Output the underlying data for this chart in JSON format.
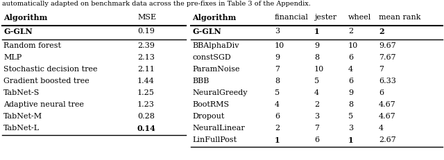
{
  "left_table": {
    "headers": [
      "Algorithm",
      "MSE"
    ],
    "gln_row": [
      "G-GLN",
      "0.19"
    ],
    "gln_bold": [
      true,
      false
    ],
    "rows": [
      [
        "Random forest",
        "2.39"
      ],
      [
        "MLP",
        "2.13"
      ],
      [
        "Stochastic decision tree",
        "2.11"
      ],
      [
        "Gradient boosted tree",
        "1.44"
      ],
      [
        "TabNet-S",
        "1.25"
      ],
      [
        "Adaptive neural tree",
        "1.23"
      ],
      [
        "TabNet-M",
        "0.28"
      ],
      [
        "TabNet-L",
        "0.14"
      ]
    ],
    "row_bold": [
      [
        false,
        false
      ],
      [
        false,
        false
      ],
      [
        false,
        false
      ],
      [
        false,
        false
      ],
      [
        false,
        false
      ],
      [
        false,
        false
      ],
      [
        false,
        false
      ],
      [
        false,
        true
      ]
    ]
  },
  "right_table": {
    "headers": [
      "Algorithm",
      "financial",
      "jester",
      "wheel",
      "mean rank"
    ],
    "gln_row": [
      "G-GLN",
      "3",
      "1",
      "2",
      "2"
    ],
    "gln_bold": [
      true,
      false,
      true,
      false,
      true
    ],
    "rows": [
      [
        "BBAlphaDiv",
        "10",
        "9",
        "10",
        "9.67"
      ],
      [
        "constSGD",
        "9",
        "8",
        "6",
        "7.67"
      ],
      [
        "ParamNoise",
        "7",
        "10",
        "4",
        "7"
      ],
      [
        "BBB",
        "8",
        "5",
        "6",
        "6.33"
      ],
      [
        "NeuralGreedy",
        "5",
        "4",
        "9",
        "6"
      ],
      [
        "BootRMS",
        "4",
        "2",
        "8",
        "4.67"
      ],
      [
        "Dropout",
        "6",
        "3",
        "5",
        "4.67"
      ],
      [
        "NeuralLinear",
        "2",
        "7",
        "3",
        "4"
      ],
      [
        "LinFullPost",
        "1",
        "6",
        "1",
        "2.67"
      ]
    ],
    "row_bold": [
      [
        false,
        false,
        false,
        false,
        false
      ],
      [
        false,
        false,
        false,
        false,
        false
      ],
      [
        false,
        false,
        false,
        false,
        false
      ],
      [
        false,
        false,
        false,
        false,
        false
      ],
      [
        false,
        false,
        false,
        false,
        false
      ],
      [
        false,
        false,
        false,
        false,
        false
      ],
      [
        false,
        false,
        false,
        false,
        false
      ],
      [
        false,
        false,
        false,
        false,
        false
      ],
      [
        false,
        true,
        false,
        true,
        false
      ]
    ]
  },
  "bg_color": "#ffffff",
  "font_size": 8.0,
  "title_partial": "automatically adapted on benchmark data across the pre-fixes in Table 3 of the Appendix."
}
